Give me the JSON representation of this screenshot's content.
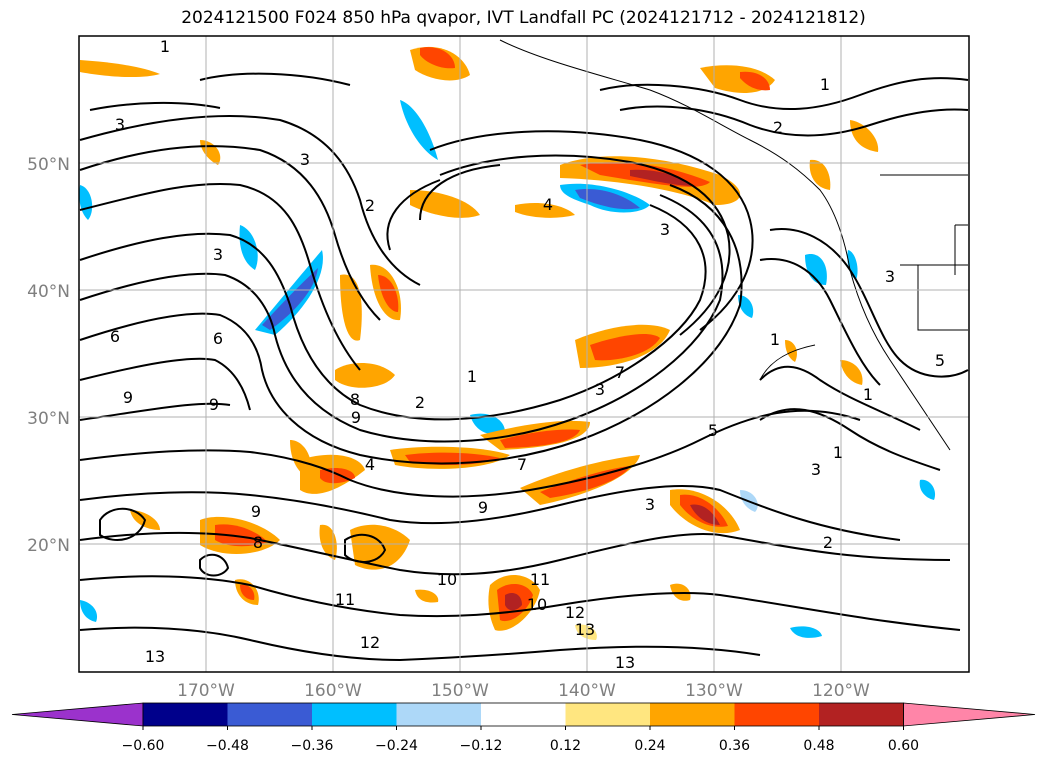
{
  "title": "2024121500 F024 850 hPa qvapor, IVT Landfall PC (2024121712 - 2024121812)",
  "latitude_labels": [
    "50°N",
    "40°N",
    "30°N",
    "20°N"
  ],
  "longitude_labels": [
    "170°W",
    "160°W",
    "150°W",
    "140°W",
    "130°W",
    "120°W"
  ],
  "colorbar": {
    "ticks": [
      "−0.60",
      "−0.48",
      "−0.36",
      "−0.24",
      "−0.12",
      "0.12",
      "0.24",
      "0.36",
      "0.48",
      "0.60"
    ],
    "colors": [
      "#9b32cc",
      "#00008b",
      "#3a5bd4",
      "#00bfff",
      "#add8f8",
      "#ffffff",
      "#ffe680",
      "#ffa500",
      "#ff4500",
      "#b22222",
      "#ff85a8"
    ]
  },
  "contour_labels": [
    "1",
    "1",
    "1",
    "1",
    "1",
    "2",
    "2",
    "2",
    "3",
    "3",
    "3",
    "3",
    "3",
    "3",
    "3",
    "4",
    "4",
    "5",
    "6",
    "6",
    "7",
    "7",
    "8",
    "8",
    "9",
    "9",
    "9",
    "9",
    "9",
    "10",
    "10",
    "11",
    "11",
    "12",
    "12",
    "13",
    "13",
    "13",
    "1",
    "2",
    "3",
    "5"
  ]
}
